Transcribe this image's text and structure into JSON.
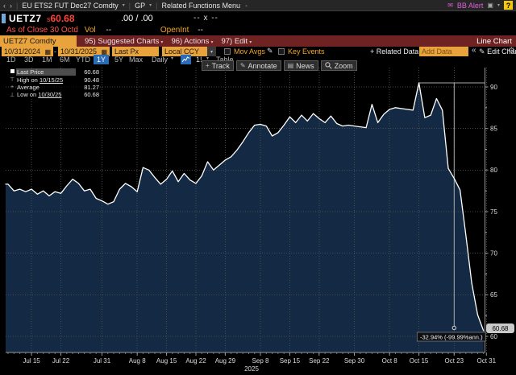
{
  "titlebar": {
    "back": "‹",
    "forward": "›",
    "security_title": "EU ETS2 FUT Dec27 Comdty",
    "screen_code": "GP",
    "related_menu": "Related Functions Menu",
    "bb_alert": "BB Alert",
    "help": "?"
  },
  "quote": {
    "ticker": "UETZ7",
    "settle_prefix": "s",
    "last_price": "60.68",
    "bid_ask": ".00 / .00",
    "bid_ask_size": "-- x --",
    "as_of": "As of Close 30 Oct",
    "as_of_suffix": "d",
    "vol_label": "Vol",
    "vol_value": "--",
    "open_int_label": "OpenInt",
    "open_int_value": "--"
  },
  "toolbar": {
    "tab": "UETZ7 Comdty",
    "items": [
      "95) Suggested Charts",
      "96) Actions",
      "97) Edit"
    ],
    "right_label": "Line Chart"
  },
  "settings": {
    "date_from": "10/31/2024",
    "date_to": "10/31/2025",
    "px_field": "Last Px",
    "currency": "Local CCY",
    "mov_avgs": "Mov Avgs",
    "key_events": "Key Events",
    "related_data": "+ Related Data",
    "add_data_placeholder": "Add Data",
    "collapse": "«",
    "edit_chart": "Edit Chart"
  },
  "periods": {
    "items": [
      "1D",
      "3D",
      "1M",
      "6M",
      "YTD",
      "1Y",
      "5Y",
      "Max"
    ],
    "selected": "1Y",
    "frequency": "Daily",
    "chart_num": "1!",
    "table": "Table"
  },
  "chart_buttons": [
    "Track",
    "Annotate",
    "News",
    "Zoom"
  ],
  "legend": {
    "rows": [
      {
        "marker": "",
        "label": "Last Price",
        "date": "",
        "value": "60.68"
      },
      {
        "marker": "⊤",
        "label": "High on ",
        "date": "10/15/25",
        "value": "90.48"
      },
      {
        "marker": "+",
        "label": "Average",
        "date": "",
        "value": "81.27"
      },
      {
        "marker": "⊥",
        "label": "Low on ",
        "date": "10/30/25",
        "value": "60.68"
      }
    ]
  },
  "icons": {
    "dropdown": "▾",
    "caret": "⌄",
    "envelope": "✉",
    "window": "▣",
    "calendar": "▦",
    "pencil": "✎",
    "gear": "⚙",
    "news": "▤",
    "plus": "+",
    "track_plus": "+"
  },
  "chart_data": {
    "type": "area",
    "series_name": "UETZ7 Last Price",
    "x_dates": [
      "Jul 9",
      "Jul 10",
      "Jul 11",
      "Jul 14",
      "Jul 15",
      "Jul 16",
      "Jul 17",
      "Jul 18",
      "Jul 21",
      "Jul 22",
      "Jul 23",
      "Jul 24",
      "Jul 25",
      "Jul 28",
      "Jul 29",
      "Jul 30",
      "Jul 31",
      "Aug 1",
      "Aug 4",
      "Aug 5",
      "Aug 6",
      "Aug 7",
      "Aug 8",
      "Aug 11",
      "Aug 12",
      "Aug 13",
      "Aug 14",
      "Aug 15",
      "Aug 18",
      "Aug 19",
      "Aug 20",
      "Aug 21",
      "Aug 22",
      "Aug 25",
      "Aug 26",
      "Aug 27",
      "Aug 28",
      "Aug 29",
      "Sep 1",
      "Sep 2",
      "Sep 3",
      "Sep 4",
      "Sep 5",
      "Sep 8",
      "Sep 9",
      "Sep 10",
      "Sep 11",
      "Sep 12",
      "Sep 15",
      "Sep 16",
      "Sep 17",
      "Sep 18",
      "Sep 19",
      "Sep 22",
      "Sep 23",
      "Sep 24",
      "Sep 25",
      "Sep 26",
      "Sep 29",
      "Sep 30",
      "Oct 1",
      "Oct 2",
      "Oct 3",
      "Oct 6",
      "Oct 7",
      "Oct 8",
      "Oct 9",
      "Oct 10",
      "Oct 13",
      "Oct 14",
      "Oct 15",
      "Oct 16",
      "Oct 17",
      "Oct 20",
      "Oct 21",
      "Oct 22",
      "Oct 23",
      "Oct 24",
      "Oct 27",
      "Oct 28",
      "Oct 29",
      "Oct 30"
    ],
    "values": [
      78.3,
      77.5,
      77.7,
      77.4,
      77.7,
      77.1,
      77.5,
      76.9,
      77.4,
      77.2,
      78.1,
      78.9,
      78.4,
      77.5,
      77.7,
      76.6,
      76.3,
      75.9,
      76.2,
      77.7,
      78.4,
      78.0,
      77.4,
      80.3,
      80.0,
      79.1,
      78.3,
      78.9,
      79.9,
      78.6,
      79.6,
      78.8,
      78.4,
      79.3,
      81.0,
      80.0,
      80.6,
      81.2,
      81.6,
      82.4,
      83.4,
      84.5,
      85.4,
      85.5,
      85.3,
      84.1,
      84.5,
      85.4,
      86.4,
      85.7,
      86.6,
      85.9,
      86.8,
      86.2,
      85.7,
      86.5,
      85.6,
      85.3,
      85.4,
      85.3,
      85.2,
      85.1,
      87.9,
      85.7,
      86.7,
      87.3,
      87.5,
      87.4,
      87.3,
      87.2,
      90.48,
      86.3,
      86.6,
      88.6,
      87.2,
      80.2,
      79.0,
      77.6,
      72.2,
      66.4,
      62.6,
      60.68
    ],
    "ylim": [
      58,
      92.5
    ],
    "yticks": [
      60,
      65,
      70,
      75,
      80,
      85,
      90
    ],
    "x_ticks": [
      {
        "label": "Jul 15",
        "i": 4
      },
      {
        "label": "Jul 22",
        "i": 9
      },
      {
        "label": "Jul 31",
        "i": 16
      },
      {
        "label": "Aug 8",
        "i": 22
      },
      {
        "label": "Aug 15",
        "i": 27
      },
      {
        "label": "Aug 22",
        "i": 32
      },
      {
        "label": "Aug 29",
        "i": 37
      },
      {
        "label": "Sep 8",
        "i": 43
      },
      {
        "label": "Sep 15",
        "i": 48
      },
      {
        "label": "Sep 22",
        "i": 53
      },
      {
        "label": "Sep 30",
        "i": 59
      },
      {
        "label": "Oct 8",
        "i": 65
      },
      {
        "label": "Oct 15",
        "i": 70
      },
      {
        "label": "Oct 23",
        "i": 76
      },
      {
        "label": "Oct 31",
        "i": 81.5
      }
    ],
    "year_label": "2025",
    "last_price": "60.68",
    "high": {
      "date": "10/15/25",
      "value": 90.48
    },
    "low": {
      "date": "10/30/25",
      "value": 60.68
    },
    "average": 81.27,
    "annotation": {
      "text": "-32.94% (-99.99%ann.)",
      "high_index": 70,
      "drop_index": 76,
      "high_value": 90.48
    },
    "colors": {
      "line": "#ffffff",
      "fill": "#142a44",
      "grid": "#4a4a4a",
      "axis": "#999999",
      "measure": "#aaaaaa",
      "badge_bg": "#c9c9c9",
      "accent_orange": "#e8a33d",
      "toolbar_red": "#6e2222",
      "selected_blue": "#2a6cb5",
      "price_red": "#ff4438",
      "amber": "#f5a623"
    },
    "legend_position": "top-left",
    "grid": true
  }
}
